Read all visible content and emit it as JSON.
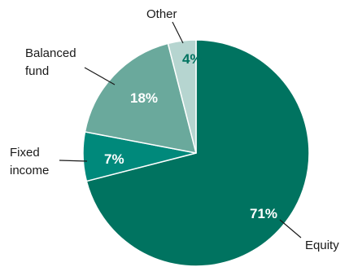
{
  "chart_data": {
    "type": "pie",
    "slices": [
      {
        "label": "Equity",
        "value": 71,
        "value_label": "71%",
        "color": "#007360",
        "value_label_color": "#ffffff"
      },
      {
        "label": "Fixed income",
        "value": 7,
        "value_label": "7%",
        "color": "#00897b",
        "value_label_color": "#ffffff"
      },
      {
        "label": "Balanced fund",
        "value": 18,
        "value_label": "18%",
        "color": "#6aa99c",
        "value_label_color": "#ffffff"
      },
      {
        "label": "Other",
        "value": 4,
        "value_label": "4%",
        "color": "#b6d5d0",
        "value_label_color": "#007360"
      }
    ],
    "start_angle_deg": 0,
    "direction": "clockwise",
    "leader_line_color": "#1a1a1a",
    "slice_border_color": "#ffffff"
  }
}
